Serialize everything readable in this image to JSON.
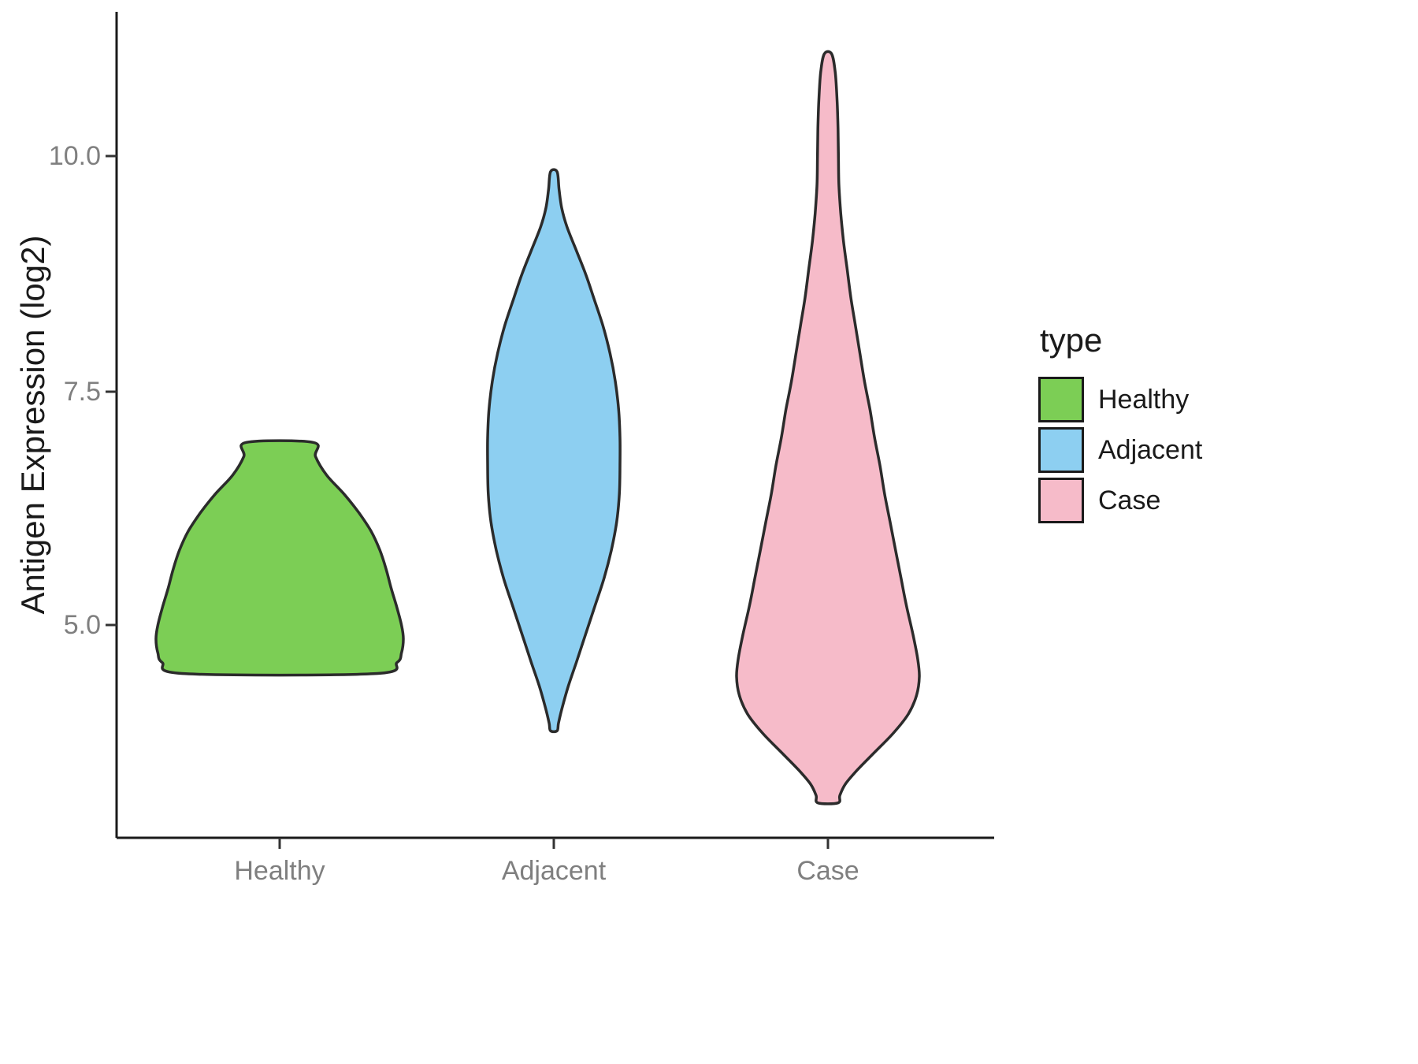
{
  "chart_data": {
    "type": "violin",
    "title": "",
    "xlabel": "",
    "ylabel": "Antigen Expression (log2)",
    "categories": [
      "Healthy",
      "Adjacent",
      "Case"
    ],
    "ylim": [
      2.9,
      11.3
    ],
    "yticks": [
      {
        "value": 5.0,
        "label": "5.0"
      },
      {
        "value": 7.5,
        "label": "7.5"
      },
      {
        "value": 10.0,
        "label": "10.0"
      }
    ],
    "grid": false,
    "outline_color": "#2b2b2b",
    "axis_color": "#1a1a1a",
    "tick_text_color": "#7f7f7f",
    "legend": {
      "title": "type",
      "position": "right",
      "entries": [
        {
          "label": "Healthy",
          "color": "#7CCE55"
        },
        {
          "label": "Adjacent",
          "color": "#8DCFF1"
        },
        {
          "label": "Case",
          "color": "#F6BBC9"
        }
      ]
    },
    "series": [
      {
        "name": "Healthy",
        "color": "#7CCE55",
        "min": 4.48,
        "max": 6.95,
        "peak_density_at": 4.85,
        "profile": [
          [
            6.95,
            0.27
          ],
          [
            6.8,
            0.29
          ],
          [
            6.6,
            0.38
          ],
          [
            6.4,
            0.52
          ],
          [
            6.2,
            0.64
          ],
          [
            6.0,
            0.74
          ],
          [
            5.8,
            0.81
          ],
          [
            5.6,
            0.86
          ],
          [
            5.4,
            0.9
          ],
          [
            5.2,
            0.945
          ],
          [
            5.0,
            0.985
          ],
          [
            4.85,
            1.0
          ],
          [
            4.7,
            0.985
          ],
          [
            4.6,
            0.95
          ],
          [
            4.48,
            0.76
          ]
        ]
      },
      {
        "name": "Adjacent",
        "color": "#8DCFF1",
        "min": 3.87,
        "max": 9.84,
        "peak_density_at": 6.85,
        "profile": [
          [
            9.84,
            0.05
          ],
          [
            9.65,
            0.08
          ],
          [
            9.45,
            0.12
          ],
          [
            9.25,
            0.2
          ],
          [
            9.0,
            0.34
          ],
          [
            8.75,
            0.48
          ],
          [
            8.5,
            0.6
          ],
          [
            8.2,
            0.74
          ],
          [
            7.9,
            0.85
          ],
          [
            7.6,
            0.93
          ],
          [
            7.3,
            0.98
          ],
          [
            7.0,
            1.0
          ],
          [
            6.7,
            1.0
          ],
          [
            6.4,
            0.99
          ],
          [
            6.1,
            0.95
          ],
          [
            5.8,
            0.87
          ],
          [
            5.5,
            0.76
          ],
          [
            5.2,
            0.62
          ],
          [
            4.9,
            0.48
          ],
          [
            4.6,
            0.34
          ],
          [
            4.35,
            0.22
          ],
          [
            4.1,
            0.12
          ],
          [
            3.95,
            0.07
          ],
          [
            3.87,
            0.05
          ]
        ]
      },
      {
        "name": "Case",
        "color": "#F6BBC9",
        "min": 3.1,
        "max": 11.1,
        "peak_density_at": 4.45,
        "profile": [
          [
            11.1,
            0.04
          ],
          [
            10.9,
            0.08
          ],
          [
            10.6,
            0.1
          ],
          [
            10.3,
            0.11
          ],
          [
            10.0,
            0.115
          ],
          [
            9.7,
            0.12
          ],
          [
            9.4,
            0.14
          ],
          [
            9.1,
            0.17
          ],
          [
            8.8,
            0.21
          ],
          [
            8.5,
            0.25
          ],
          [
            8.2,
            0.3
          ],
          [
            7.9,
            0.35
          ],
          [
            7.6,
            0.4
          ],
          [
            7.3,
            0.46
          ],
          [
            7.0,
            0.51
          ],
          [
            6.7,
            0.57
          ],
          [
            6.4,
            0.62
          ],
          [
            6.1,
            0.68
          ],
          [
            5.8,
            0.74
          ],
          [
            5.5,
            0.8
          ],
          [
            5.2,
            0.86
          ],
          [
            4.9,
            0.93
          ],
          [
            4.65,
            0.98
          ],
          [
            4.45,
            1.0
          ],
          [
            4.25,
            0.97
          ],
          [
            4.05,
            0.88
          ],
          [
            3.85,
            0.72
          ],
          [
            3.65,
            0.52
          ],
          [
            3.45,
            0.32
          ],
          [
            3.3,
            0.19
          ],
          [
            3.18,
            0.13
          ],
          [
            3.1,
            0.11
          ]
        ]
      }
    ]
  }
}
